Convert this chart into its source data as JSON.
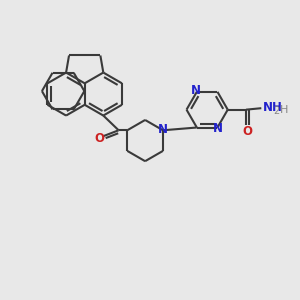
{
  "bg_color": "#e8e8e8",
  "bond_color": "#3a3a3a",
  "n_color": "#2222cc",
  "o_color": "#cc2222",
  "h_color": "#888888",
  "line_width": 1.5,
  "fig_size": [
    3.0,
    3.0
  ],
  "dpi": 100,
  "xlim": [
    0,
    10
  ],
  "ylim": [
    0,
    10
  ]
}
